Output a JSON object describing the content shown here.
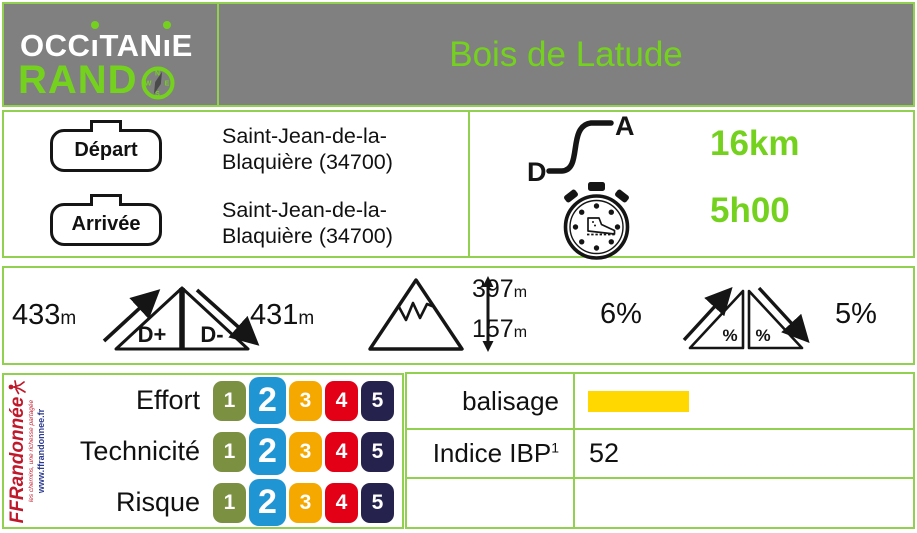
{
  "brand": {
    "line1": "OCCITANIE",
    "line2": "RANDO",
    "line2_display": "RAND",
    "accent_green": "#74d21e",
    "border_green": "#92d050",
    "header_gray": "#808080"
  },
  "title": "Bois de Latude",
  "route": {
    "depart_label": "Départ",
    "depart_value": "Saint-Jean-de-la-Blaquière (34700)",
    "arrivee_label": "Arrivée",
    "arrivee_value": "Saint-Jean-de-la-Blaquière (34700)",
    "distance": "16km",
    "duration": "5h00",
    "route_icon_start": "D",
    "route_icon_end": "A"
  },
  "elevation": {
    "gain_value": "433",
    "gain_unit": "m",
    "gain_label": "D+",
    "loss_value": "431",
    "loss_unit": "m",
    "loss_label": "D-",
    "alt_max_value": "397",
    "alt_max_unit": "m",
    "alt_min_value": "157",
    "alt_min_unit": "m",
    "slope_up": "6%",
    "slope_down": "5%",
    "slope_symbol": "%"
  },
  "ratings": {
    "scale": [
      "1",
      "2",
      "3",
      "4",
      "5"
    ],
    "rows": [
      {
        "label": "Effort",
        "value": 2
      },
      {
        "label": "Technicité",
        "value": 2
      },
      {
        "label": "Risque",
        "value": 2
      }
    ],
    "palette": [
      "#7c9041",
      "#2095d3",
      "#f5a800",
      "#e30016",
      "#26224e"
    ]
  },
  "info": {
    "balisage_label": "balisage",
    "balisage_color": "#ffd800",
    "ibp_label": "Indice IBP",
    "ibp_sup": "1",
    "ibp_value": "52"
  },
  "ffr": {
    "name": "FFRandonnée",
    "slogan": "les chemins, une richesse partagée",
    "url": "www.ffrandonnee.fr"
  }
}
